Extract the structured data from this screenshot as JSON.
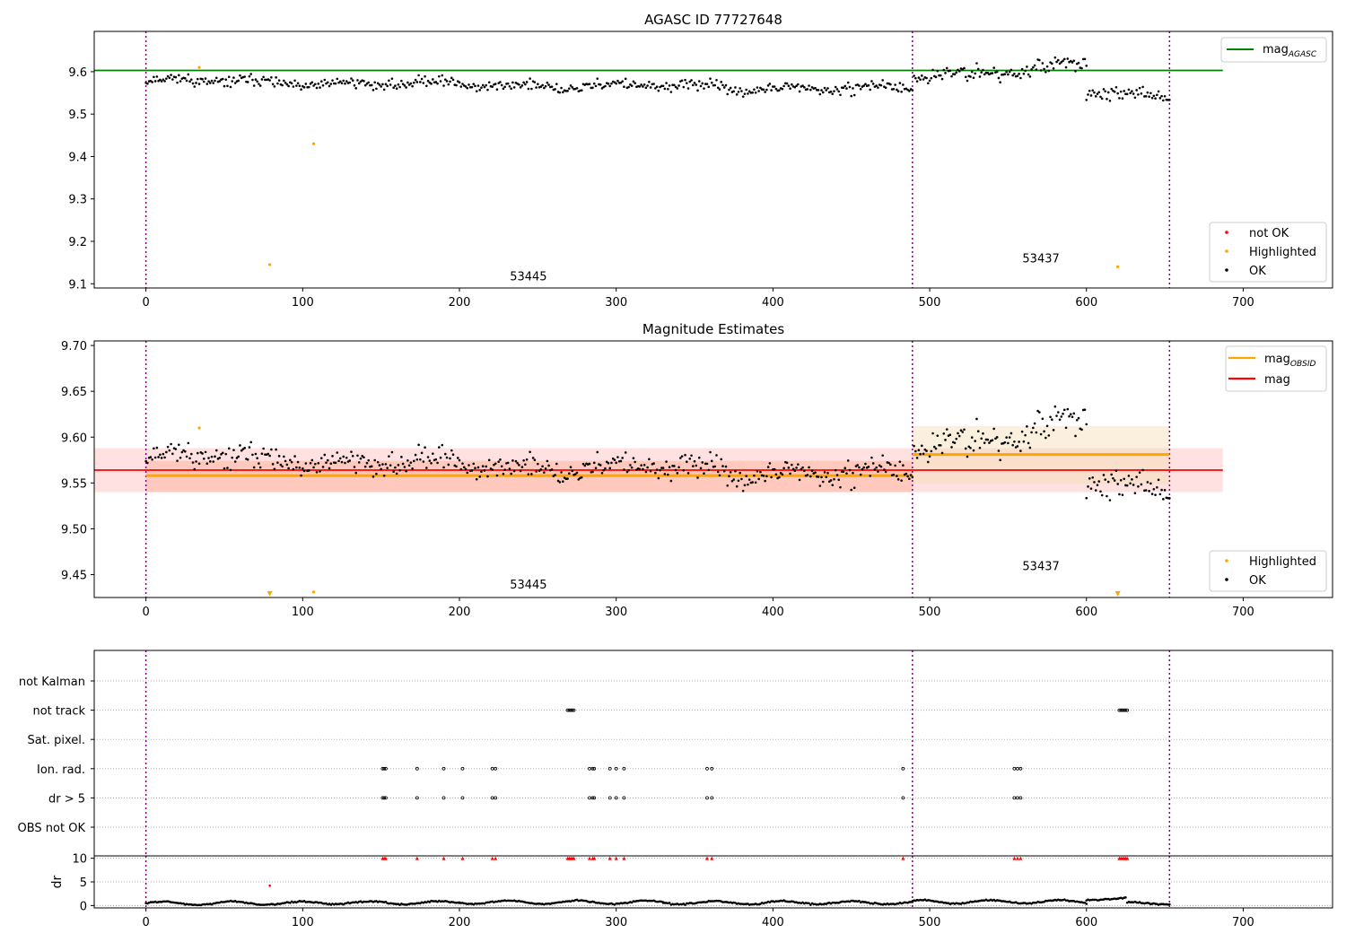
{
  "chart_data": [
    {
      "id": "p1",
      "type": "scatter",
      "title": "AGASC ID 77727648",
      "xlim": [
        -33,
        757
      ],
      "ylim": [
        9.09,
        9.695
      ],
      "xticks": [
        0,
        100,
        200,
        300,
        400,
        500,
        600,
        700
      ],
      "yticks": [
        9.1,
        9.2,
        9.3,
        9.4,
        9.5,
        9.6
      ],
      "ytick_labels": [
        "9.1",
        "9.2",
        "9.3",
        "9.4",
        "9.5",
        "9.6"
      ],
      "vlines": [
        0,
        489,
        653
      ],
      "hlines": [
        {
          "name": "mag_agasc",
          "y": 9.603,
          "x0": -33,
          "x1": 687,
          "color": "#008000"
        }
      ],
      "obs_labels": [
        {
          "text": "53445",
          "x": 244,
          "y": 9.108
        },
        {
          "text": "53437",
          "x": 571,
          "y": 9.15
        }
      ],
      "segments": [
        {
          "x0": 0,
          "x1": 489,
          "y0": 9.578,
          "y1": 9.558,
          "noise": 0.0185,
          "seed": 11
        },
        {
          "x0": 490,
          "x1": 600,
          "y0": 9.59,
          "y1": 9.617,
          "noise": 0.028,
          "seed": 23
        },
        {
          "x0": 600,
          "x1": 653,
          "y0": 9.553,
          "y1": 9.535,
          "noise": 0.026,
          "seed": 37
        }
      ],
      "highlighted": [
        {
          "x": 34,
          "y": 9.61
        },
        {
          "x": 79,
          "y": 9.145
        },
        {
          "x": 107,
          "y": 9.43
        },
        {
          "x": 620,
          "y": 9.14
        }
      ],
      "legend_line": [
        {
          "label": "mag",
          "sub": "AGASC",
          "color": "#008000"
        }
      ],
      "legend_points": [
        {
          "label": "not OK",
          "color": "#ff0000"
        },
        {
          "label": "Highlighted",
          "color": "#ffa500"
        },
        {
          "label": "OK",
          "color": "#000000"
        }
      ]
    },
    {
      "id": "p2",
      "type": "scatter",
      "title": "Magnitude Estimates",
      "xlim": [
        -33,
        757
      ],
      "ylim": [
        9.425,
        9.705
      ],
      "xticks": [
        0,
        100,
        200,
        300,
        400,
        500,
        600,
        700
      ],
      "yticks": [
        9.45,
        9.5,
        9.55,
        9.6,
        9.65,
        9.7
      ],
      "ytick_labels": [
        "9.45",
        "9.50",
        "9.55",
        "9.60",
        "9.65",
        "9.70"
      ],
      "vlines": [
        0,
        489,
        653
      ],
      "bands": [
        {
          "x0": -33,
          "x1": 687,
          "y0": 9.54,
          "y1": 9.588,
          "color": "#ffb3b3",
          "opacity": 0.4
        },
        {
          "x0": 0,
          "x1": 489,
          "y0": 9.54,
          "y1": 9.574,
          "color": "#ffa07a",
          "opacity": 0.35
        },
        {
          "x0": 489,
          "x1": 653,
          "y0": 9.549,
          "y1": 9.612,
          "color": "#f5deb3",
          "opacity": 0.45
        }
      ],
      "hlines": [
        {
          "name": "mag",
          "y": 9.564,
          "x0": -33,
          "x1": 687,
          "color": "#ff0000"
        },
        {
          "name": "mag_obsid_1",
          "y": 9.558,
          "x0": 0,
          "x1": 489,
          "color": "#ffa500",
          "width": 3
        },
        {
          "name": "mag_obsid_2",
          "y": 9.581,
          "x0": 489,
          "x1": 653,
          "color": "#ffa500",
          "width": 3
        }
      ],
      "obs_labels": [
        {
          "text": "53445",
          "x": 244,
          "y": 9.435
        },
        {
          "text": "53437",
          "x": 571,
          "y": 9.455
        }
      ],
      "segments": [
        {
          "x0": 0,
          "x1": 489,
          "y0": 9.578,
          "y1": 9.558,
          "noise": 0.0185,
          "seed": 11
        },
        {
          "x0": 490,
          "x1": 600,
          "y0": 9.59,
          "y1": 9.617,
          "noise": 0.028,
          "seed": 23
        },
        {
          "x0": 600,
          "x1": 653,
          "y0": 9.553,
          "y1": 9.535,
          "noise": 0.026,
          "seed": 37
        }
      ],
      "highlighted": [
        {
          "x": 34,
          "y": 9.61
        },
        {
          "x": 107,
          "y": 9.431
        }
      ],
      "offscale_markers": [
        {
          "x": 79,
          "y": 9.429
        },
        {
          "x": 620,
          "y": 9.429
        }
      ],
      "legend_line": [
        {
          "label": "mag",
          "sub": "OBSID",
          "color": "#ffa500"
        },
        {
          "label": "mag",
          "sub": "",
          "color": "#ff0000"
        }
      ],
      "legend_points": [
        {
          "label": "Highlighted",
          "color": "#ffa500"
        },
        {
          "label": "OK",
          "color": "#000000"
        }
      ]
    },
    {
      "id": "p3",
      "type": "scatter",
      "title": "",
      "xlim": [
        -33,
        757
      ],
      "categories": [
        "not Kalman",
        "not track",
        "Sat. pixel.",
        "Ion. rad.",
        "dr > 5",
        "OBS not OK"
      ],
      "vlines": [
        0,
        489,
        653
      ],
      "flags": {
        "not track": [
          269,
          270,
          271,
          272,
          273,
          621,
          622,
          623,
          624,
          625,
          626
        ],
        "Ion. rad.": [
          151,
          152,
          153,
          173,
          190,
          202,
          221,
          223,
          283,
          285,
          286,
          296,
          300,
          305,
          358,
          361,
          483,
          554,
          556,
          558
        ],
        "dr > 5": [
          151,
          152,
          153,
          173,
          190,
          202,
          221,
          223,
          283,
          285,
          286,
          296,
          300,
          305,
          358,
          361,
          483,
          554,
          556,
          558
        ]
      }
    },
    {
      "id": "p4",
      "type": "scatter",
      "title": "",
      "xlim": [
        -33,
        757
      ],
      "ylim": [
        -0.5,
        10.5
      ],
      "yticks": [
        0,
        5,
        10
      ],
      "ytick_labels": [
        "0",
        "5",
        "10"
      ],
      "xticks": [
        0,
        100,
        200,
        300,
        400,
        500,
        600,
        700
      ],
      "ylabel": "dr",
      "vlines": [
        0,
        489,
        653
      ],
      "segments": [
        {
          "x0": 0,
          "x1": 107,
          "level": 0.5,
          "amp": 0.6,
          "seed": 5
        },
        {
          "x0": 108,
          "x1": 200,
          "level": 0.6,
          "amp": 0.5,
          "seed": 6
        },
        {
          "x0": 200,
          "x1": 330,
          "level": 0.7,
          "amp": 0.6,
          "seed": 7
        },
        {
          "x0": 330,
          "x1": 489,
          "level": 0.6,
          "amp": 0.5,
          "seed": 8
        },
        {
          "x0": 489,
          "x1": 600,
          "level": 0.8,
          "amp": 0.6,
          "seed": 9
        },
        {
          "x0": 600,
          "x1": 625,
          "level": 1.4,
          "amp": 0.3,
          "seed": 10
        },
        {
          "x0": 626,
          "x1": 653,
          "level": 0.5,
          "amp": 0.4,
          "seed": 12
        }
      ],
      "clipped_x": [
        151,
        152,
        153,
        173,
        190,
        202,
        221,
        223,
        269,
        270,
        271,
        272,
        273,
        283,
        285,
        286,
        296,
        300,
        305,
        358,
        361,
        483,
        554,
        556,
        558,
        621,
        622,
        623,
        624,
        625,
        626
      ],
      "clipped_y": 10,
      "highlighted": [
        {
          "x": 79,
          "y": 4.2
        }
      ]
    }
  ]
}
